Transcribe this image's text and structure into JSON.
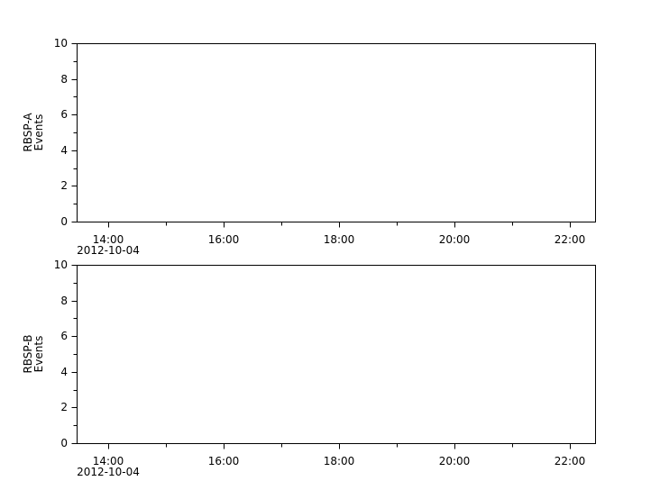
{
  "chart_data": [
    {
      "type": "line",
      "ylabel_line1": "RBSP-A",
      "ylabel_line2": "Events",
      "ylim": [
        0,
        10
      ],
      "yticks": [
        "0",
        "2",
        "4",
        "6",
        "8",
        "10"
      ],
      "xticks": [
        "14:00",
        "16:00",
        "18:00",
        "20:00",
        "22:00"
      ],
      "xtick_date": "2012-10-04",
      "series": []
    },
    {
      "type": "line",
      "ylabel_line1": "RBSP-B",
      "ylabel_line2": "Events",
      "ylim": [
        0,
        10
      ],
      "yticks": [
        "0",
        "2",
        "4",
        "6",
        "8",
        "10"
      ],
      "xticks": [
        "14:00",
        "16:00",
        "18:00",
        "20:00",
        "22:00"
      ],
      "xtick_date": "2012-10-04",
      "series": []
    }
  ]
}
